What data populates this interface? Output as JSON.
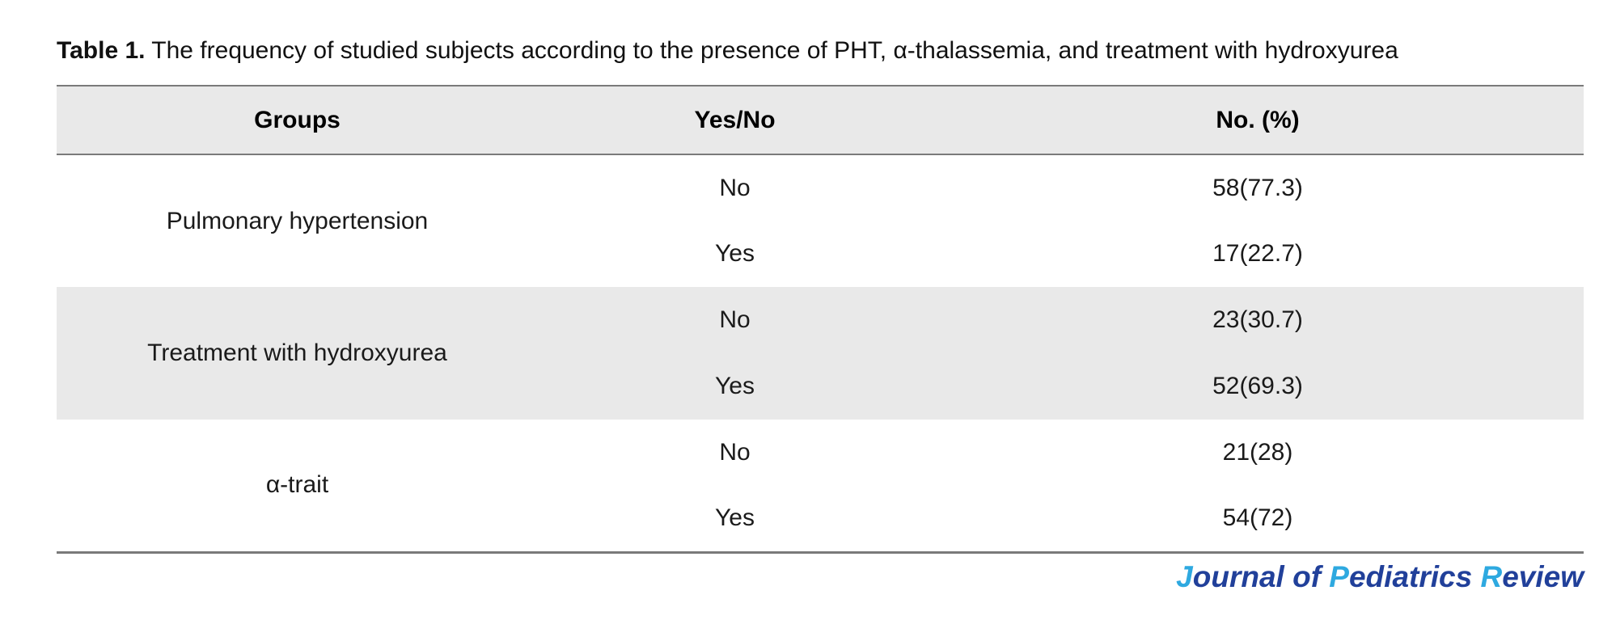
{
  "colors": {
    "stripe": "#e9e9e9",
    "border-gray": "#7a7a7a",
    "brand-navy": "#21409a",
    "accent-blue": "#2ea9e0"
  },
  "caption": {
    "prefix": "Table 1.",
    "text": " The frequency of studied subjects according to the presence of PHT, α-thalassemia, and treatment with hydroxyurea"
  },
  "table": {
    "headers": [
      "Groups",
      "Yes/No",
      "No. (%)"
    ],
    "groups": [
      {
        "label": "Pulmonary hypertension",
        "rows": [
          {
            "yes_no": "No",
            "no_pct": "58(77.3)"
          },
          {
            "yes_no": "Yes",
            "no_pct": "17(22.7)"
          }
        ]
      },
      {
        "label": "Treatment with hydroxyurea",
        "rows": [
          {
            "yes_no": "No",
            "no_pct": "23(30.7)"
          },
          {
            "yes_no": "Yes",
            "no_pct": "52(69.3)"
          }
        ]
      },
      {
        "label": "α-trait",
        "rows": [
          {
            "yes_no": "No",
            "no_pct": "21(28)"
          },
          {
            "yes_no": "Yes",
            "no_pct": "54(72)"
          }
        ]
      }
    ]
  },
  "footer": {
    "segments": [
      {
        "text": "J"
      },
      {
        "text": "ournal of "
      },
      {
        "text": "P"
      },
      {
        "text": "ediatrics "
      },
      {
        "text": "R"
      },
      {
        "text": "eview"
      }
    ]
  }
}
